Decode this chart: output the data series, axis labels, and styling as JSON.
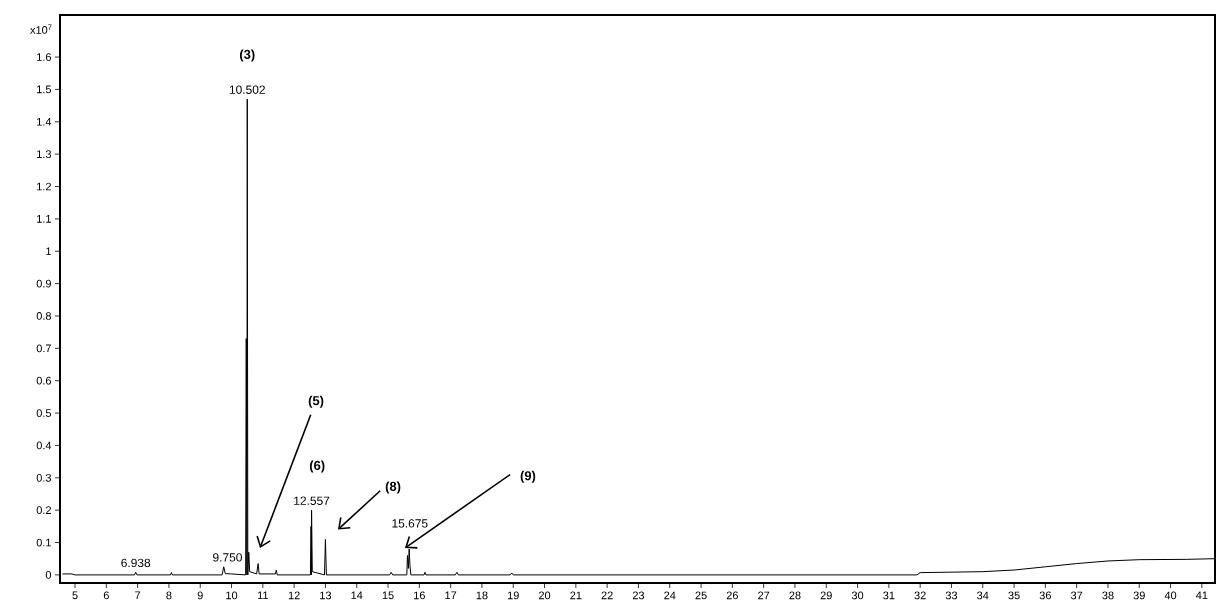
{
  "chart_data": {
    "type": "line",
    "ylabel": "x10$^{7}$",
    "color": "#000000",
    "xlim": [
      4.52,
      41.42
    ],
    "ylim": [
      -0.025,
      1.73
    ],
    "xticks": [
      5,
      6,
      7,
      8,
      9,
      10,
      11,
      12,
      13,
      14,
      15,
      16,
      17,
      18,
      19,
      20,
      21,
      22,
      23,
      24,
      25,
      26,
      27,
      28,
      29,
      30,
      31,
      32,
      33,
      34,
      35,
      36,
      37,
      38,
      39,
      40,
      41
    ],
    "yticks": [
      0,
      0.1,
      0.2,
      0.3,
      0.4,
      0.5,
      0.6,
      0.7,
      0.8,
      0.9,
      1,
      1.1,
      1.2,
      1.3,
      1.4,
      1.5,
      1.6
    ],
    "x": [
      4.6,
      4.9,
      5.0,
      6.9,
      6.938,
      6.98,
      8.05,
      8.08,
      8.11,
      9.7,
      9.75,
      9.8,
      10.0,
      10.45,
      10.47,
      10.49,
      10.502,
      10.52,
      10.55,
      10.58,
      10.8,
      10.85,
      10.88,
      11.4,
      11.43,
      11.46,
      12.52,
      12.54,
      12.55,
      12.557,
      12.58,
      12.97,
      13.0,
      13.03,
      15.05,
      15.1,
      15.15,
      15.6,
      15.62,
      15.65,
      15.675,
      15.7,
      15.73,
      16.15,
      16.18,
      16.21,
      17.15,
      17.2,
      17.25,
      18.9,
      18.95,
      19.0,
      31.9,
      32.0,
      34.0,
      35.0,
      36.0,
      37.0,
      38.0,
      39.0,
      40.5,
      41.4
    ],
    "values": [
      0.003,
      0.003,
      0,
      0,
      0.008,
      0,
      0,
      0.007,
      0,
      0,
      0.025,
      0.004,
      0.003,
      0,
      0.73,
      0,
      1.47,
      0,
      0.07,
      0.01,
      0.003,
      0.035,
      0.003,
      0.003,
      0.015,
      0,
      0,
      0.15,
      0,
      0.2,
      0.01,
      0,
      0.11,
      0,
      0,
      0.008,
      0,
      0,
      0.06,
      0.02,
      0.08,
      0.03,
      0,
      0,
      0.008,
      0,
      0,
      0.008,
      0,
      0,
      0.006,
      0,
      0,
      0.007,
      0.01,
      0.015,
      0.025,
      0.035,
      0.043,
      0.047,
      0.048,
      0.05
    ],
    "annotations": [
      {
        "text": "(3)",
        "x": 10.502,
        "y": 1.47
      },
      {
        "text": "10.502",
        "x": 10.502,
        "y": 1.47
      },
      {
        "text": "6.938",
        "x": 6.938,
        "y": 0.008
      },
      {
        "text": "9.750",
        "x": 9.75,
        "y": 0.025
      },
      "(5)",
      {
        "text": "(6)",
        "x": 12.557,
        "y": 0.2
      },
      {
        "text": "12.557",
        "x": 12.557,
        "y": 0.2
      },
      "(8)",
      {
        "text": "15.675",
        "x": 15.675,
        "y": 0.08
      },
      {
        "text": "(9)",
        "x": 15.54,
        "y": 0.083
      }
    ]
  }
}
